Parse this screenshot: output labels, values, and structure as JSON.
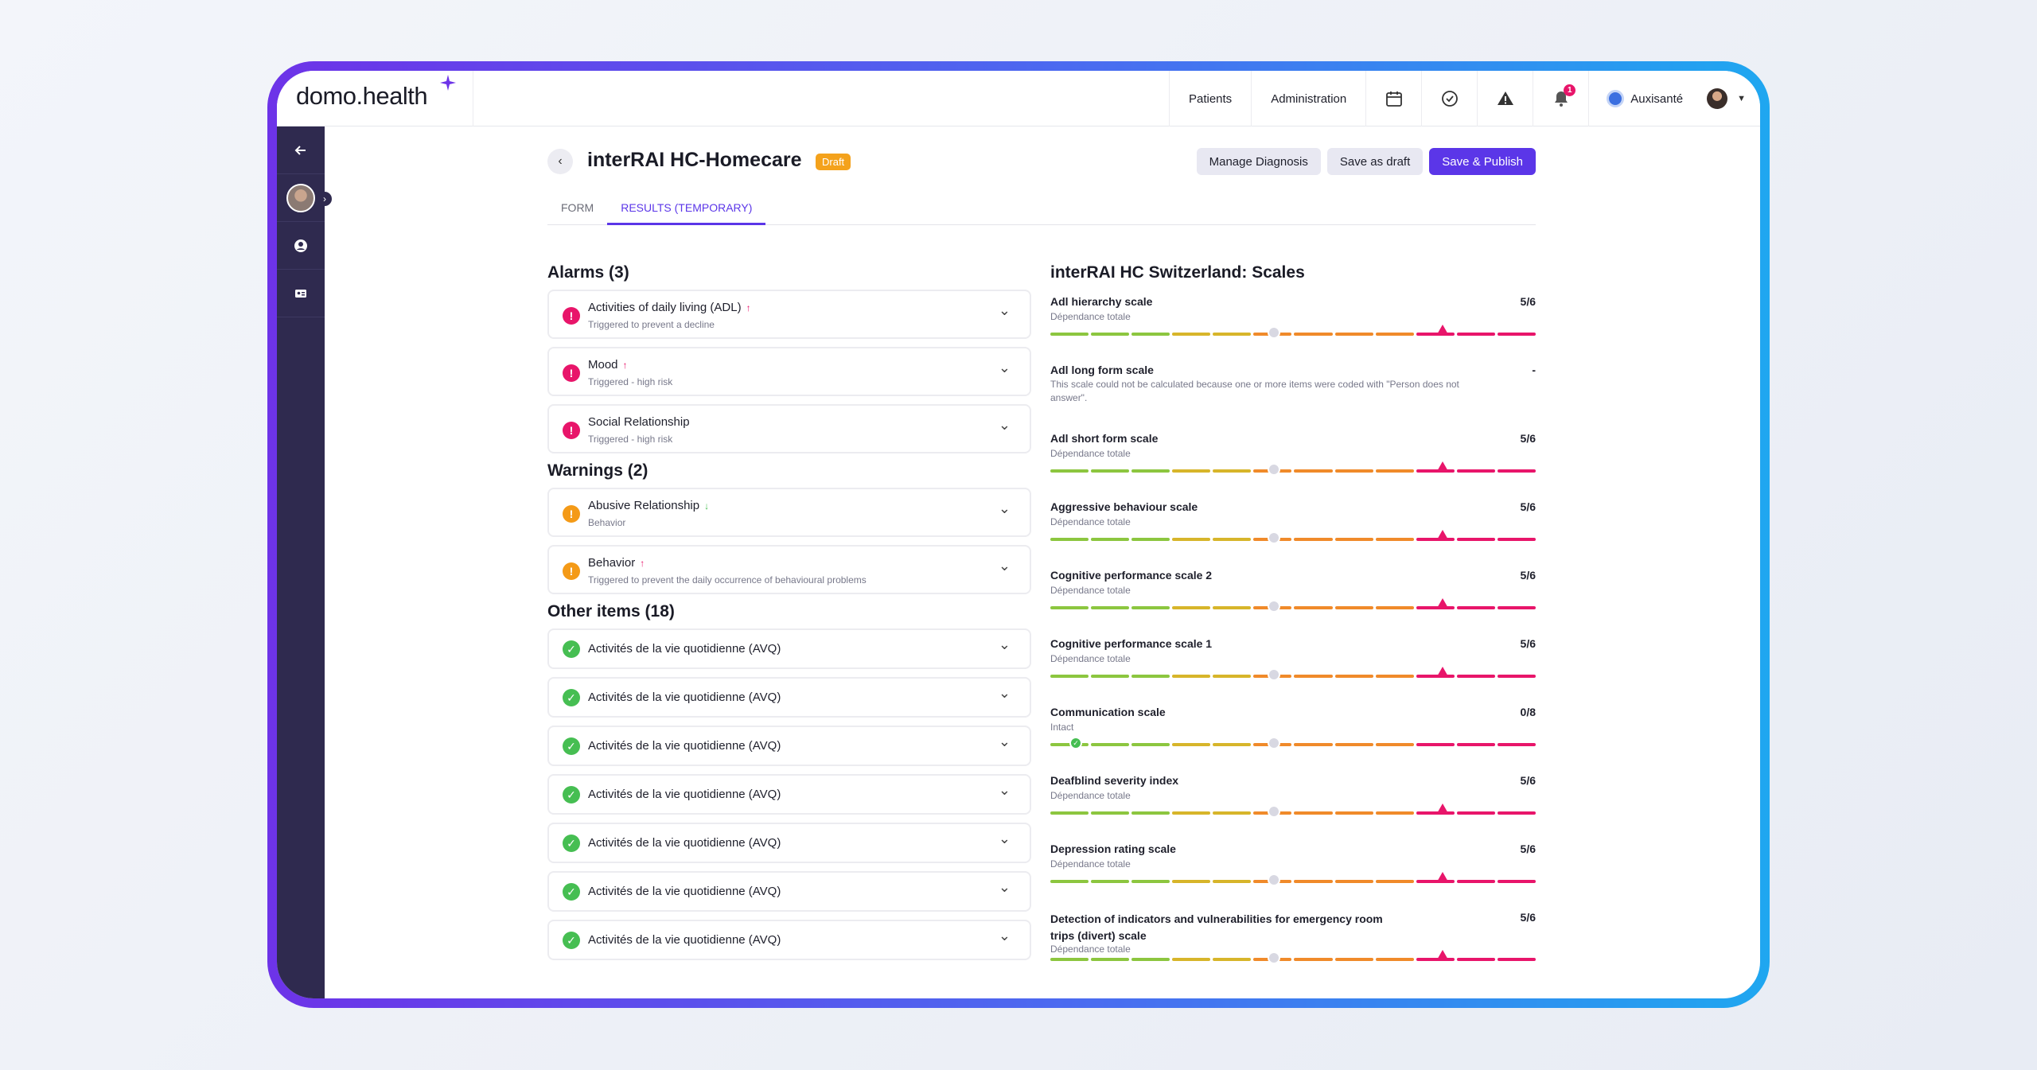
{
  "app": {
    "logo": "domo.health"
  },
  "nav": {
    "patients": "Patients",
    "administration": "Administration",
    "notifications_count": "1",
    "org_name": "Auxisanté"
  },
  "page": {
    "title": "interRAI HC-Homecare",
    "status_badge": "Draft"
  },
  "buttons": {
    "manage_diagnosis": "Manage Diagnosis",
    "save_draft": "Save as draft",
    "save_publish": "Save & Publish"
  },
  "tabs": [
    {
      "label": "FORM"
    },
    {
      "label": "RESULTS (TEMPORARY)"
    }
  ],
  "alarms": {
    "title": "Alarms (3)",
    "items": [
      {
        "title": "Activities of daily living (ADL)",
        "sub": "Triggered to prevent a decline",
        "trend": "up"
      },
      {
        "title": "Mood",
        "sub": "Triggered - high risk",
        "trend": "up"
      },
      {
        "title": "Social Relationship",
        "sub": "Triggered - high risk",
        "trend": ""
      }
    ]
  },
  "warnings": {
    "title": "Warnings (2)",
    "items": [
      {
        "title": "Abusive Relationship",
        "sub": "Behavior",
        "trend": "down"
      },
      {
        "title": "Behavior",
        "sub": "Triggered to prevent the daily occurrence of behavioural problems",
        "trend": "up"
      }
    ]
  },
  "others": {
    "title": "Other items (18)",
    "items": [
      {
        "title": "Activités de la vie quotidienne (AVQ)"
      },
      {
        "title": "Activités de la vie quotidienne (AVQ)"
      },
      {
        "title": "Activités de la vie quotidienne (AVQ)"
      },
      {
        "title": "Activités de la vie quotidienne (AVQ)"
      },
      {
        "title": "Activités de la vie quotidienne (AVQ)"
      },
      {
        "title": "Activités de la vie quotidienne (AVQ)"
      },
      {
        "title": "Activités de la vie quotidienne (AVQ)"
      }
    ]
  },
  "scales": {
    "title": "interRAI HC Switzerland: Scales",
    "items": [
      {
        "name": "Adl hierarchy scale",
        "sub": "Dépendance totale",
        "value": "5/6",
        "score": 5,
        "max": 6
      },
      {
        "name": "Adl long form scale",
        "sub": "This scale could not be calculated because one or more items were coded with \"Person does not answer\".",
        "value": "-",
        "score": null,
        "max": null
      },
      {
        "name": "Adl short form scale",
        "sub": "Dépendance totale",
        "value": "5/6",
        "score": 5,
        "max": 6
      },
      {
        "name": "Aggressive behaviour scale",
        "sub": "Dépendance totale",
        "value": "5/6",
        "score": 5,
        "max": 6
      },
      {
        "name": "Cognitive performance scale 2",
        "sub": "Dépendance totale",
        "value": "5/6",
        "score": 5,
        "max": 6
      },
      {
        "name": "Cognitive performance scale 1",
        "sub": "Dépendance totale",
        "value": "5/6",
        "score": 5,
        "max": 6
      },
      {
        "name": "Communication scale",
        "sub": "Intact",
        "value": "0/8",
        "score": 0,
        "max": 8
      },
      {
        "name": "Deafblind severity index",
        "sub": "Dépendance totale",
        "value": "5/6",
        "score": 5,
        "max": 6
      },
      {
        "name": "Depression rating scale",
        "sub": "Dépendance totale",
        "value": "5/6",
        "score": 5,
        "max": 6
      },
      {
        "name": "Detection of indicators and vulnerabilities for emergency room trips (divert) scale",
        "sub": "Dépendance totale",
        "value": "5/6",
        "score": 5,
        "max": 6
      }
    ]
  },
  "colors": {
    "accent": "#5b36e8",
    "alarm": "#e8156a",
    "warning": "#f49a17",
    "ok": "#46be52",
    "bar_green": "#8cc63f",
    "bar_yellow": "#d7b52a",
    "bar_orange": "#f08a2a",
    "bar_red": "#e8156a"
  }
}
